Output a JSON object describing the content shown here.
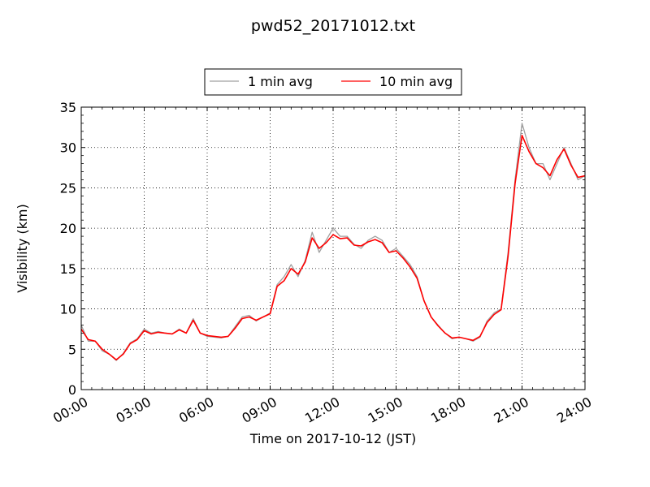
{
  "chart_data": {
    "type": "line",
    "title": "pwd52_20171012.txt",
    "xlabel": "Time on 2017-10-12 (JST)",
    "ylabel": "Visibility (km)",
    "xlim": [
      "00:00",
      "24:00"
    ],
    "ylim": [
      0,
      35
    ],
    "x_ticks": [
      "00:00",
      "03:00",
      "06:00",
      "09:00",
      "12:00",
      "15:00",
      "18:00",
      "21:00",
      "24:00"
    ],
    "y_ticks": [
      "0",
      "5",
      "10",
      "15",
      "20",
      "25",
      "30",
      "35"
    ],
    "grid": true,
    "legend_position": "top-center",
    "series": [
      {
        "name": "1 min avg",
        "color": "#a0a0a0",
        "x": [
          "00:00",
          "00:20",
          "00:40",
          "01:00",
          "01:20",
          "01:40",
          "02:00",
          "02:20",
          "02:40",
          "03:00",
          "03:20",
          "03:40",
          "04:00",
          "04:20",
          "04:40",
          "05:00",
          "05:20",
          "05:40",
          "06:00",
          "06:20",
          "06:40",
          "07:00",
          "07:20",
          "07:40",
          "08:00",
          "08:20",
          "08:40",
          "09:00",
          "09:20",
          "09:40",
          "10:00",
          "10:20",
          "10:40",
          "11:00",
          "11:20",
          "11:40",
          "12:00",
          "12:20",
          "12:40",
          "13:00",
          "13:20",
          "13:40",
          "14:00",
          "14:20",
          "14:40",
          "15:00",
          "15:20",
          "15:40",
          "16:00",
          "16:20",
          "16:40",
          "17:00",
          "17:20",
          "17:40",
          "18:00",
          "18:20",
          "18:40",
          "19:00",
          "19:20",
          "19:40",
          "20:00",
          "20:20",
          "20:40",
          "21:00",
          "21:20",
          "21:40",
          "22:00",
          "22:20",
          "22:40",
          "23:00",
          "23:20",
          "23:40",
          "24:00"
        ],
        "values": [
          8.0,
          6.0,
          6.0,
          4.8,
          4.4,
          3.6,
          4.5,
          5.8,
          6.3,
          7.5,
          7.0,
          7.2,
          7.0,
          6.9,
          7.5,
          7.0,
          8.8,
          7.0,
          6.6,
          6.5,
          6.4,
          6.6,
          7.8,
          9.0,
          9.2,
          8.5,
          9.0,
          9.5,
          13.0,
          14.0,
          15.5,
          14.0,
          16.0,
          19.5,
          17.0,
          18.5,
          20.0,
          19.0,
          19.0,
          18.0,
          17.5,
          18.5,
          19.0,
          18.5,
          17.0,
          17.5,
          16.5,
          15.5,
          14.0,
          11.0,
          9.0,
          8.0,
          7.0,
          6.3,
          6.5,
          6.3,
          6.0,
          6.5,
          8.5,
          9.5,
          10.0,
          17.0,
          26.0,
          33.0,
          30.0,
          28.0,
          28.0,
          26.0,
          28.0,
          30.0,
          28.0,
          26.0,
          26.5
        ]
      },
      {
        "name": "10 min avg",
        "color": "#ff0000",
        "x": [
          "00:00",
          "00:20",
          "00:40",
          "01:00",
          "01:20",
          "01:40",
          "02:00",
          "02:20",
          "02:40",
          "03:00",
          "03:20",
          "03:40",
          "04:00",
          "04:20",
          "04:40",
          "05:00",
          "05:20",
          "05:40",
          "06:00",
          "06:20",
          "06:40",
          "07:00",
          "07:20",
          "07:40",
          "08:00",
          "08:20",
          "08:40",
          "09:00",
          "09:20",
          "09:40",
          "10:00",
          "10:20",
          "10:40",
          "11:00",
          "11:20",
          "11:40",
          "12:00",
          "12:20",
          "12:40",
          "13:00",
          "13:20",
          "13:40",
          "14:00",
          "14:20",
          "14:40",
          "15:00",
          "15:20",
          "15:40",
          "16:00",
          "16:20",
          "16:40",
          "17:00",
          "17:20",
          "17:40",
          "18:00",
          "18:20",
          "18:40",
          "19:00",
          "19:20",
          "19:40",
          "20:00",
          "20:20",
          "20:40",
          "21:00",
          "21:20",
          "21:40",
          "22:00",
          "22:20",
          "22:40",
          "23:00",
          "23:20",
          "23:40",
          "24:00"
        ],
        "values": [
          7.5,
          6.2,
          6.0,
          5.0,
          4.4,
          3.7,
          4.4,
          5.7,
          6.2,
          7.3,
          6.9,
          7.1,
          7.0,
          6.9,
          7.4,
          7.0,
          8.6,
          7.0,
          6.7,
          6.6,
          6.5,
          6.6,
          7.6,
          8.8,
          9.0,
          8.6,
          9.0,
          9.4,
          12.8,
          13.5,
          15.0,
          14.3,
          15.8,
          18.8,
          17.5,
          18.2,
          19.2,
          18.7,
          18.8,
          17.9,
          17.8,
          18.3,
          18.6,
          18.2,
          17.0,
          17.2,
          16.3,
          15.2,
          13.8,
          11.0,
          9.0,
          7.9,
          7.0,
          6.4,
          6.5,
          6.3,
          6.1,
          6.6,
          8.3,
          9.3,
          9.9,
          16.5,
          25.5,
          31.5,
          29.5,
          28.0,
          27.5,
          26.5,
          28.5,
          29.8,
          27.8,
          26.3,
          26.5
        ]
      }
    ]
  }
}
